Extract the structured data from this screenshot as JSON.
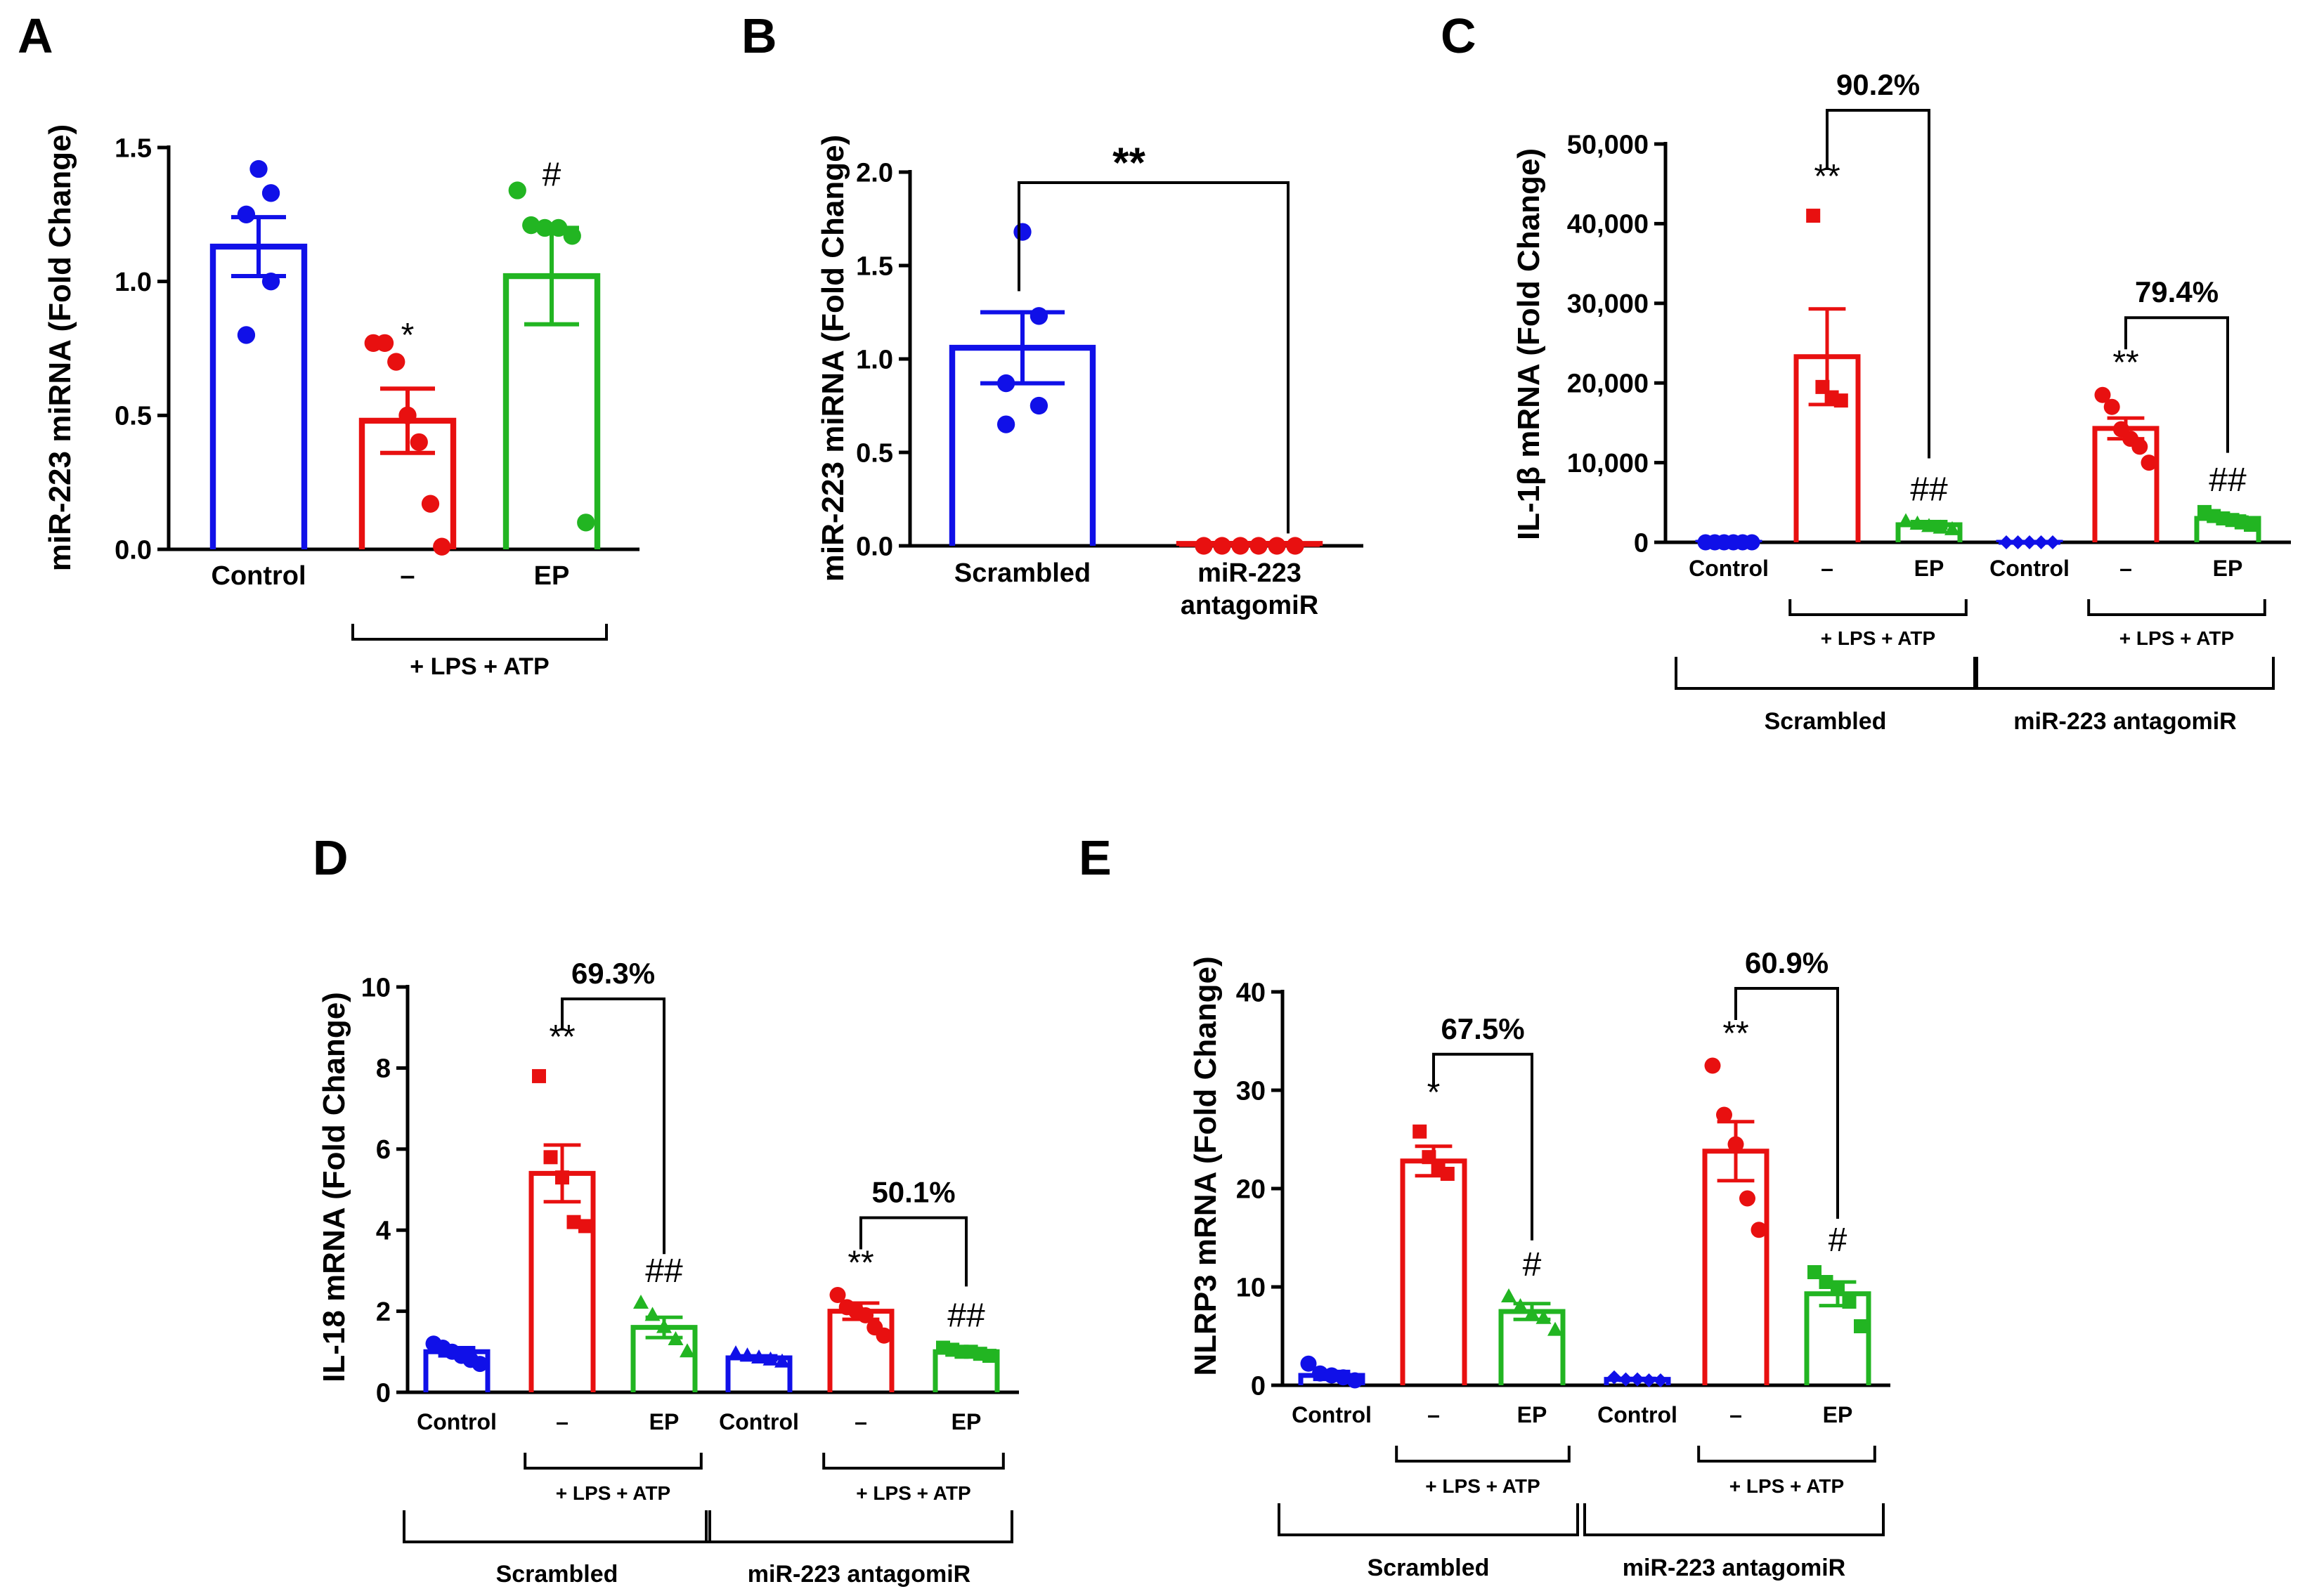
{
  "chart_data": [
    {
      "panel": "A",
      "type": "bar",
      "ylabel": "miR-223 miRNA (Fold Change)",
      "ylim": [
        0,
        1.5
      ],
      "yticks": [
        "0.0",
        "0.5",
        "1.0",
        "1.5"
      ],
      "categories": [
        "Control",
        "–",
        "EP"
      ],
      "bar_colors": [
        "#1010e8",
        "#e81010",
        "#22b522"
      ],
      "values": [
        1.13,
        0.48,
        1.02
      ],
      "sem": [
        0.11,
        0.12,
        0.18
      ],
      "points": [
        [
          1.42,
          1.33,
          1.25,
          1.0,
          0.8
        ],
        [
          0.77,
          0.77,
          0.7,
          0.5,
          0.4,
          0.17,
          0.01
        ],
        [
          1.34,
          1.21,
          1.2,
          1.2,
          1.17,
          0.1
        ]
      ],
      "markers": [
        "circle",
        "circle",
        "circle"
      ],
      "significance": [
        "",
        "*",
        "#"
      ],
      "group_brackets": [
        {
          "label": "+ LPS + ATP",
          "from": 1,
          "to": 2
        }
      ]
    },
    {
      "panel": "B",
      "type": "bar",
      "ylabel": "miR-223 miRNA (Fold Change)",
      "ylim": [
        0,
        2.0
      ],
      "yticks": [
        "0.0",
        "0.5",
        "1.0",
        "1.5",
        "2.0"
      ],
      "categories": [
        "Scrambled",
        "miR-223 antagomiR"
      ],
      "bar_colors": [
        "#1010e8",
        "#e81010"
      ],
      "values": [
        1.06,
        0.01
      ],
      "sem": [
        0.19,
        0.005
      ],
      "points": [
        [
          1.68,
          1.23,
          0.87,
          0.75,
          0.65
        ],
        [
          0.0,
          0.0,
          0.0,
          0.0,
          0.0,
          0.0
        ]
      ],
      "markers": [
        "circle",
        "circle"
      ],
      "comparisons": [
        {
          "from": 0,
          "to": 1,
          "label": "**"
        }
      ]
    },
    {
      "panel": "C",
      "type": "bar",
      "ylabel": "IL-1β mRNA (Fold Change)",
      "ylim": [
        0,
        50000
      ],
      "yticks": [
        "0",
        "10,000",
        "20,000",
        "30,000",
        "40,000",
        "50,000"
      ],
      "categories": [
        "Control",
        "–",
        "EP",
        "Control",
        "–",
        "EP"
      ],
      "bar_colors": [
        "#1010e8",
        "#e81010",
        "#22b522",
        "#1010e8",
        "#e81010",
        "#22b522"
      ],
      "values": [
        1,
        23300,
        2200,
        1,
        14300,
        3000
      ],
      "sem": [
        0,
        6000,
        400,
        0,
        1300,
        300
      ],
      "points": [
        [
          0,
          0,
          0,
          0,
          0,
          0
        ],
        [
          41000,
          19500,
          18200,
          17800
        ],
        [
          2600,
          2300,
          2000,
          1800,
          1600
        ],
        [
          0,
          0,
          0,
          0,
          0
        ],
        [
          18500,
          17000,
          14200,
          13000,
          12000,
          10000
        ],
        [
          3800,
          3300,
          3000,
          2800,
          2500,
          2200
        ]
      ],
      "markers": [
        "circle",
        "square",
        "triangle",
        "diamond",
        "circle",
        "square"
      ],
      "significance": [
        "",
        "**",
        "##",
        "",
        "**",
        "##"
      ],
      "comparisons": [
        {
          "from": 1,
          "to": 2,
          "label": "90.2%"
        },
        {
          "from": 4,
          "to": 5,
          "label": "79.4%"
        }
      ],
      "group_brackets": [
        {
          "label": "+ LPS + ATP",
          "from": 1,
          "to": 2
        },
        {
          "label": "+ LPS + ATP",
          "from": 4,
          "to": 5
        }
      ],
      "outer_brackets": [
        {
          "label": "Scrambled",
          "from": 0,
          "to": 2
        },
        {
          "label": "miR-223 antagomiR",
          "from": 3,
          "to": 5
        }
      ]
    },
    {
      "panel": "D",
      "type": "bar",
      "ylabel": "IL-18 mRNA (Fold Change)",
      "ylim": [
        0,
        10
      ],
      "yticks": [
        "0",
        "2",
        "4",
        "6",
        "8",
        "10"
      ],
      "categories": [
        "Control",
        "–",
        "EP",
        "Control",
        "–",
        "EP"
      ],
      "bar_colors": [
        "#1010e8",
        "#e81010",
        "#22b522",
        "#1010e8",
        "#e81010",
        "#22b522"
      ],
      "values": [
        1.0,
        5.4,
        1.6,
        0.85,
        2.0,
        1.0
      ],
      "sem": [
        0.1,
        0.7,
        0.25,
        0.05,
        0.2,
        0.05
      ],
      "points": [
        [
          1.2,
          1.1,
          1.0,
          0.9,
          0.8,
          0.7
        ],
        [
          7.8,
          5.8,
          5.3,
          4.2,
          4.1
        ],
        [
          2.2,
          1.9,
          1.6,
          1.3,
          1.0
        ],
        [
          0.95,
          0.9,
          0.85,
          0.8,
          0.75
        ],
        [
          2.4,
          2.1,
          2.0,
          1.9,
          1.6,
          1.4
        ],
        [
          1.1,
          1.05,
          1.0,
          1.0,
          0.95,
          0.9
        ]
      ],
      "markers": [
        "circle",
        "square",
        "triangle",
        "triangle",
        "circle",
        "square"
      ],
      "significance": [
        "",
        "**",
        "##",
        "",
        "**",
        "##"
      ],
      "comparisons": [
        {
          "from": 1,
          "to": 2,
          "label": "69.3%"
        },
        {
          "from": 4,
          "to": 5,
          "label": "50.1%"
        }
      ],
      "group_brackets": [
        {
          "label": "+ LPS + ATP",
          "from": 1,
          "to": 2
        },
        {
          "label": "+ LPS + ATP",
          "from": 4,
          "to": 5
        }
      ],
      "outer_brackets": [
        {
          "label": "Scrambled",
          "from": 0,
          "to": 2
        },
        {
          "label": "miR-223 antagomiR",
          "from": 3,
          "to": 5
        }
      ]
    },
    {
      "panel": "E",
      "type": "bar",
      "ylabel": "NLRP3 mRNA (Fold Change)",
      "ylim": [
        0,
        40
      ],
      "yticks": [
        "0",
        "10",
        "20",
        "30",
        "40"
      ],
      "categories": [
        "Control",
        "–",
        "EP",
        "Control",
        "–",
        "EP"
      ],
      "bar_colors": [
        "#1010e8",
        "#e81010",
        "#22b522",
        "#1010e8",
        "#e81010",
        "#22b522"
      ],
      "values": [
        1.0,
        22.8,
        7.5,
        0.6,
        23.8,
        9.3
      ],
      "sem": [
        0.4,
        1.5,
        0.8,
        0.1,
        3.0,
        1.2
      ],
      "points": [
        [
          2.2,
          1.2,
          1.0,
          0.8,
          0.5
        ],
        [
          25.8,
          23.2,
          22.0,
          21.5
        ],
        [
          9.0,
          8.0,
          7.2,
          6.8,
          5.6
        ],
        [
          0.8,
          0.6,
          0.6,
          0.5,
          0.5
        ],
        [
          32.5,
          27.5,
          24.5,
          19.0,
          15.8
        ],
        [
          11.5,
          10.5,
          9.8,
          8.5,
          6.0
        ]
      ],
      "markers": [
        "circle",
        "square",
        "triangle",
        "diamond",
        "circle",
        "square"
      ],
      "significance": [
        "",
        "*",
        "#",
        "",
        "**",
        "#"
      ],
      "comparisons": [
        {
          "from": 1,
          "to": 2,
          "label": "67.5%"
        },
        {
          "from": 4,
          "to": 5,
          "label": "60.9%"
        }
      ],
      "group_brackets": [
        {
          "label": "+ LPS + ATP",
          "from": 1,
          "to": 2
        },
        {
          "label": "+ LPS + ATP",
          "from": 4,
          "to": 5
        }
      ],
      "outer_brackets": [
        {
          "label": "Scrambled",
          "from": 0,
          "to": 2
        },
        {
          "label": "miR-223 antagomiR",
          "from": 3,
          "to": 5
        }
      ]
    }
  ]
}
